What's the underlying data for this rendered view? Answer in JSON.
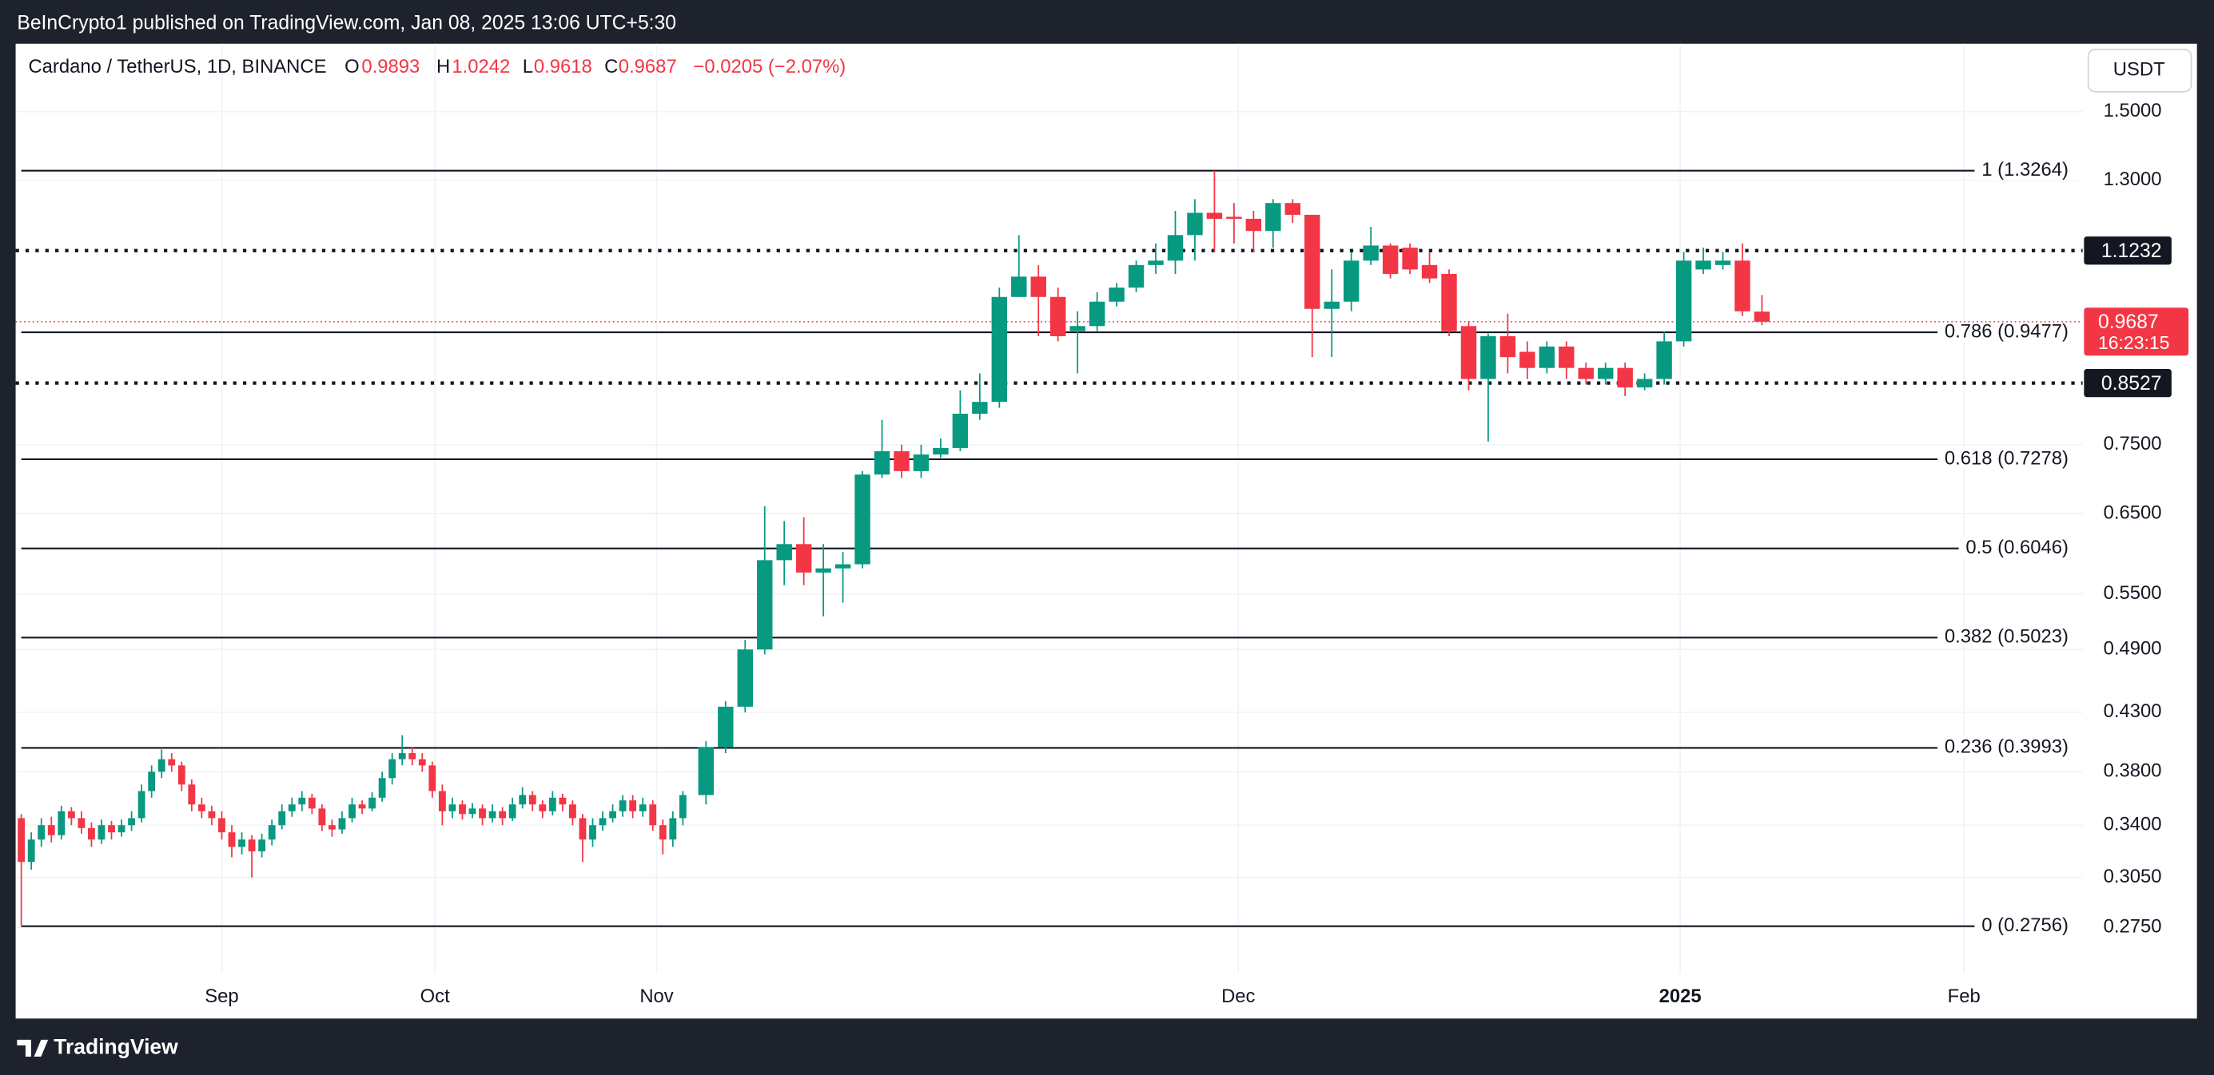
{
  "header": "BeInCrypto1 published on TradingView.com, Jan 08, 2025 13:06 UTC+5:30",
  "footer": "TradingView",
  "chart_data": {
    "type": "candlestick",
    "title": "Cardano / TetherUS, 1D, BINANCE",
    "ohlc_labels": [
      "O",
      "H",
      "L",
      "C"
    ],
    "change": "−0.0205 (−2.07%)",
    "currency": "USDT",
    "log_scale": true,
    "grid": true,
    "up_color": "#089981",
    "down_color": "#f23645",
    "ylim": [
      0.2498,
      1.727
    ],
    "yticks": [
      {
        "value": 1.5,
        "label": "1.5000"
      },
      {
        "value": 1.3,
        "label": "1.3000"
      },
      {
        "value": 0.75,
        "label": "0.7500"
      },
      {
        "value": 0.65,
        "label": "0.6500"
      },
      {
        "value": 0.55,
        "label": "0.5500"
      },
      {
        "value": 0.49,
        "label": "0.4900"
      },
      {
        "value": 0.43,
        "label": "0.4300"
      },
      {
        "value": 0.38,
        "label": "0.3800"
      },
      {
        "value": 0.34,
        "label": "0.3400"
      },
      {
        "value": 0.305,
        "label": "0.3050"
      },
      {
        "value": 0.275,
        "label": "0.2750"
      }
    ],
    "xlabels": [
      "Sep",
      "Oct",
      "Nov",
      "Dec",
      "2025",
      "Feb"
    ],
    "fib_levels": [
      {
        "value": 1.3264,
        "label": "1 (1.3264)"
      },
      {
        "value": 0.9477,
        "label": "0.786 (0.9477)"
      },
      {
        "value": 0.7278,
        "label": "0.618 (0.7278)"
      },
      {
        "value": 0.6046,
        "label": "0.5 (0.6046)"
      },
      {
        "value": 0.5023,
        "label": "0.382 (0.5023)"
      },
      {
        "value": 0.3993,
        "label": "0.236 (0.3993)"
      },
      {
        "value": 0.2756,
        "label": "0 (0.2756)"
      }
    ],
    "key_levels": [
      1.1232,
      0.8527
    ],
    "last_price": 0.9687,
    "countdown": "16:23:15",
    "candles": [
      [
        0.345,
        0.348,
        0.2756,
        0.315
      ],
      [
        0.315,
        0.335,
        0.31,
        0.33
      ],
      [
        0.33,
        0.345,
        0.325,
        0.34
      ],
      [
        0.34,
        0.346,
        0.328,
        0.333
      ],
      [
        0.333,
        0.354,
        0.33,
        0.35
      ],
      [
        0.35,
        0.353,
        0.34,
        0.345
      ],
      [
        0.345,
        0.35,
        0.334,
        0.338
      ],
      [
        0.338,
        0.342,
        0.325,
        0.33
      ],
      [
        0.33,
        0.344,
        0.327,
        0.34
      ],
      [
        0.34,
        0.343,
        0.33,
        0.335
      ],
      [
        0.335,
        0.344,
        0.332,
        0.34
      ],
      [
        0.34,
        0.35,
        0.336,
        0.345
      ],
      [
        0.345,
        0.37,
        0.342,
        0.365
      ],
      [
        0.365,
        0.385,
        0.36,
        0.38
      ],
      [
        0.38,
        0.398,
        0.375,
        0.39
      ],
      [
        0.39,
        0.395,
        0.38,
        0.385
      ],
      [
        0.385,
        0.388,
        0.365,
        0.37
      ],
      [
        0.37,
        0.374,
        0.35,
        0.355
      ],
      [
        0.355,
        0.36,
        0.345,
        0.35
      ],
      [
        0.35,
        0.354,
        0.34,
        0.345
      ],
      [
        0.345,
        0.35,
        0.33,
        0.335
      ],
      [
        0.335,
        0.34,
        0.318,
        0.325
      ],
      [
        0.325,
        0.335,
        0.32,
        0.33
      ],
      [
        0.33,
        0.333,
        0.305,
        0.322
      ],
      [
        0.322,
        0.334,
        0.318,
        0.33
      ],
      [
        0.33,
        0.344,
        0.326,
        0.34
      ],
      [
        0.34,
        0.355,
        0.337,
        0.35
      ],
      [
        0.35,
        0.36,
        0.346,
        0.355
      ],
      [
        0.355,
        0.365,
        0.35,
        0.36
      ],
      [
        0.36,
        0.363,
        0.348,
        0.352
      ],
      [
        0.352,
        0.355,
        0.336,
        0.34
      ],
      [
        0.34,
        0.344,
        0.332,
        0.337
      ],
      [
        0.337,
        0.35,
        0.334,
        0.345
      ],
      [
        0.345,
        0.36,
        0.342,
        0.355
      ],
      [
        0.355,
        0.358,
        0.348,
        0.352
      ],
      [
        0.352,
        0.364,
        0.35,
        0.36
      ],
      [
        0.36,
        0.38,
        0.357,
        0.375
      ],
      [
        0.375,
        0.395,
        0.37,
        0.39
      ],
      [
        0.39,
        0.41,
        0.385,
        0.395
      ],
      [
        0.395,
        0.4,
        0.385,
        0.39
      ],
      [
        0.39,
        0.395,
        0.38,
        0.385
      ],
      [
        0.385,
        0.388,
        0.36,
        0.365
      ],
      [
        0.365,
        0.37,
        0.34,
        0.35
      ],
      [
        0.35,
        0.36,
        0.345,
        0.355
      ],
      [
        0.355,
        0.358,
        0.344,
        0.348
      ],
      [
        0.348,
        0.356,
        0.345,
        0.352
      ],
      [
        0.352,
        0.355,
        0.34,
        0.345
      ],
      [
        0.345,
        0.355,
        0.342,
        0.35
      ],
      [
        0.35,
        0.353,
        0.34,
        0.345
      ],
      [
        0.345,
        0.36,
        0.343,
        0.355
      ],
      [
        0.355,
        0.368,
        0.352,
        0.362
      ],
      [
        0.362,
        0.365,
        0.35,
        0.355
      ],
      [
        0.355,
        0.358,
        0.345,
        0.35
      ],
      [
        0.35,
        0.365,
        0.347,
        0.36
      ],
      [
        0.36,
        0.363,
        0.35,
        0.355
      ],
      [
        0.355,
        0.358,
        0.34,
        0.345
      ],
      [
        0.345,
        0.348,
        0.315,
        0.33
      ],
      [
        0.33,
        0.345,
        0.325,
        0.34
      ],
      [
        0.34,
        0.35,
        0.336,
        0.345
      ],
      [
        0.345,
        0.355,
        0.342,
        0.35
      ],
      [
        0.35,
        0.362,
        0.346,
        0.358
      ],
      [
        0.358,
        0.362,
        0.345,
        0.35
      ],
      [
        0.35,
        0.36,
        0.346,
        0.355
      ],
      [
        0.355,
        0.358,
        0.336,
        0.34
      ],
      [
        0.34,
        0.344,
        0.32,
        0.33
      ],
      [
        0.33,
        0.35,
        0.325,
        0.345
      ],
      [
        0.345,
        0.365,
        0.34,
        0.362
      ],
      [
        0.362,
        0.405,
        0.355,
        0.4
      ],
      [
        0.4,
        0.44,
        0.395,
        0.435
      ],
      [
        0.435,
        0.5,
        0.43,
        0.49
      ],
      [
        0.49,
        0.66,
        0.485,
        0.59
      ],
      [
        0.59,
        0.64,
        0.56,
        0.61
      ],
      [
        0.61,
        0.645,
        0.56,
        0.575
      ],
      [
        0.575,
        0.61,
        0.525,
        0.58
      ],
      [
        0.58,
        0.6,
        0.54,
        0.585
      ],
      [
        0.585,
        0.71,
        0.58,
        0.705
      ],
      [
        0.705,
        0.79,
        0.7,
        0.74
      ],
      [
        0.74,
        0.75,
        0.7,
        0.71
      ],
      [
        0.71,
        0.75,
        0.7,
        0.735
      ],
      [
        0.735,
        0.76,
        0.73,
        0.745
      ],
      [
        0.745,
        0.84,
        0.74,
        0.8
      ],
      [
        0.8,
        0.87,
        0.79,
        0.82
      ],
      [
        0.82,
        1.04,
        0.81,
        1.02
      ],
      [
        1.02,
        1.16,
        1.02,
        1.064
      ],
      [
        1.064,
        1.09,
        0.94,
        1.02
      ],
      [
        1.02,
        1.04,
        0.93,
        0.94
      ],
      [
        0.95,
        0.99,
        0.87,
        0.96
      ],
      [
        0.96,
        1.03,
        0.95,
        1.01
      ],
      [
        1.01,
        1.05,
        1.0,
        1.04
      ],
      [
        1.04,
        1.1,
        1.03,
        1.09
      ],
      [
        1.09,
        1.14,
        1.07,
        1.1
      ],
      [
        1.1,
        1.22,
        1.07,
        1.16
      ],
      [
        1.16,
        1.25,
        1.1,
        1.215
      ],
      [
        1.215,
        1.3264,
        1.12,
        1.2
      ],
      [
        1.205,
        1.24,
        1.14,
        1.2
      ],
      [
        1.2,
        1.22,
        1.12,
        1.17
      ],
      [
        1.17,
        1.25,
        1.13,
        1.24
      ],
      [
        1.24,
        1.25,
        1.19,
        1.21
      ],
      [
        1.21,
        1.21,
        0.9,
        0.995
      ],
      [
        0.995,
        1.08,
        0.9,
        1.01
      ],
      [
        1.01,
        1.12,
        0.99,
        1.1
      ],
      [
        1.1,
        1.18,
        1.09,
        1.135
      ],
      [
        1.135,
        1.14,
        1.06,
        1.07
      ],
      [
        1.13,
        1.14,
        1.07,
        1.08
      ],
      [
        1.09,
        1.12,
        1.05,
        1.06
      ],
      [
        1.07,
        1.08,
        0.94,
        0.95
      ],
      [
        0.96,
        0.97,
        0.84,
        0.86
      ],
      [
        0.86,
        0.945,
        0.755,
        0.94
      ],
      [
        0.94,
        0.985,
        0.87,
        0.9
      ],
      [
        0.91,
        0.93,
        0.86,
        0.88
      ],
      [
        0.88,
        0.93,
        0.87,
        0.92
      ],
      [
        0.92,
        0.93,
        0.86,
        0.88
      ],
      [
        0.88,
        0.89,
        0.85,
        0.86
      ],
      [
        0.86,
        0.89,
        0.85,
        0.88
      ],
      [
        0.88,
        0.89,
        0.83,
        0.845
      ],
      [
        0.845,
        0.87,
        0.84,
        0.86
      ],
      [
        0.86,
        0.95,
        0.85,
        0.93
      ],
      [
        0.93,
        1.12,
        0.92,
        1.1
      ],
      [
        1.08,
        1.13,
        1.07,
        1.1
      ],
      [
        1.09,
        1.12,
        1.08,
        1.1
      ],
      [
        1.1,
        1.14,
        0.98,
        0.99
      ],
      [
        0.9893,
        1.0242,
        0.9618,
        0.9687
      ]
    ]
  }
}
